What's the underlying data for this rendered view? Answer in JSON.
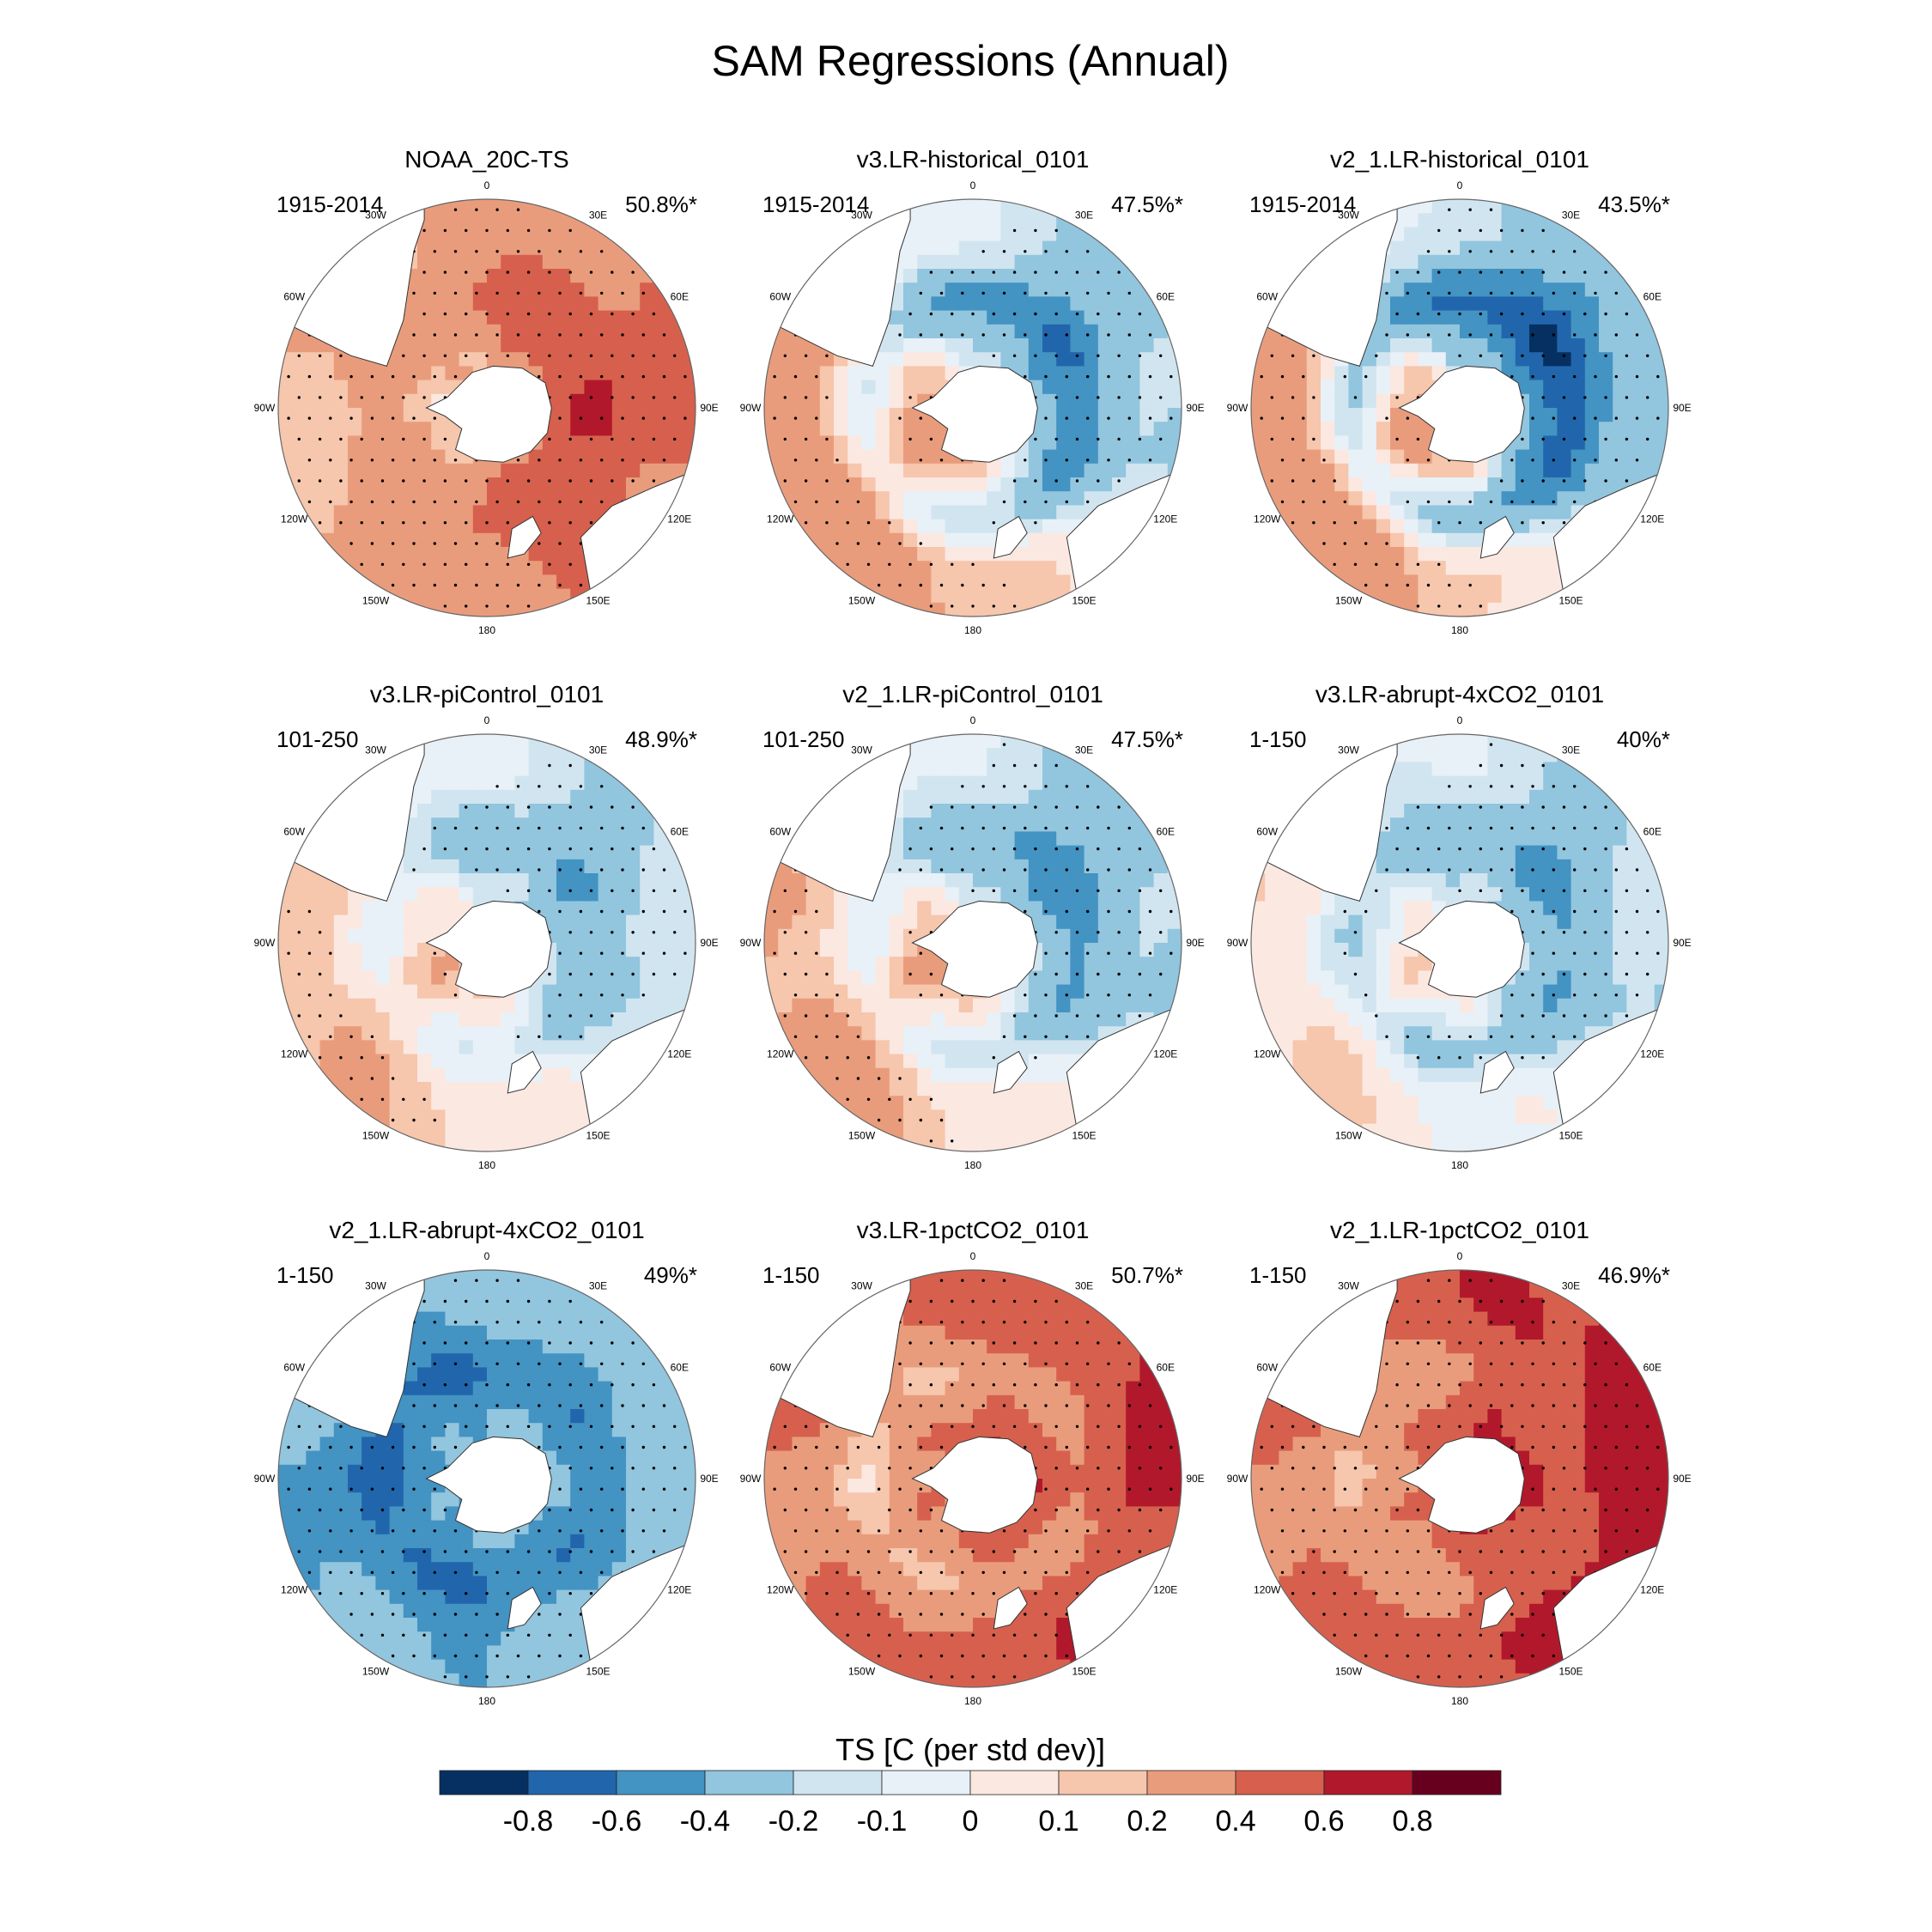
{
  "chart_data": {
    "type": "heatmap",
    "title": "SAM Regressions (Annual)",
    "projection": "south-polar-stereographic",
    "longitude_labels": [
      "0",
      "30E",
      "60E",
      "90E",
      "120E",
      "150E",
      "180",
      "150W",
      "120W",
      "90W",
      "60W",
      "30W"
    ],
    "panels": [
      {
        "title": "NOAA_20C-TS",
        "period": "1915-2014",
        "variance": "50.8%*",
        "pattern": {
          "base": 0.3,
          "ring": 0.15,
          "phase": 0,
          "mod": 0.15,
          "inner": -0.05
        }
      },
      {
        "title": "v3.LR-historical_0101",
        "period": "1915-2014",
        "variance": "47.5%*",
        "pattern": {
          "base": 0.05,
          "ring": -0.35,
          "phase": 150,
          "mod": 0.3,
          "inner": 0.0
        }
      },
      {
        "title": "v2_1.LR-historical_0101",
        "period": "1915-2014",
        "variance": "43.5%*",
        "pattern": {
          "base": 0.0,
          "ring": -0.45,
          "phase": 150,
          "mod": 0.35,
          "inner": 0.0
        }
      },
      {
        "title": "v3.LR-piControl_0101",
        "period": "101-250",
        "variance": "48.9%*",
        "pattern": {
          "base": 0.0,
          "ring": -0.2,
          "phase": 150,
          "mod": 0.2,
          "inner": 0.0
        }
      },
      {
        "title": "v2_1.LR-piControl_0101",
        "period": "101-250",
        "variance": "47.5%*",
        "pattern": {
          "base": 0.0,
          "ring": -0.25,
          "phase": 150,
          "mod": 0.25,
          "inner": 0.0
        }
      },
      {
        "title": "v3.LR-abrupt-4xCO2_0101",
        "period": "1-150",
        "variance": "40%*",
        "pattern": {
          "base": -0.05,
          "ring": -0.25,
          "phase": 150,
          "mod": 0.15,
          "inner": 0.0
        }
      },
      {
        "title": "v2_1.LR-abrupt-4xCO2_0101",
        "period": "1-150",
        "variance": "49%*",
        "pattern": {
          "base": -0.35,
          "ring": -0.25,
          "phase": 0,
          "mod": 0.05,
          "inner": 0.0
        }
      },
      {
        "title": "v3.LR-1pctCO2_0101",
        "period": "1-150",
        "variance": "50.7%*",
        "pattern": {
          "base": 0.5,
          "ring": -0.25,
          "phase": 0,
          "mod": 0.12,
          "inner": 0.0
        }
      },
      {
        "title": "v2_1.LR-1pctCO2_0101",
        "period": "1-150",
        "variance": "46.9%*",
        "pattern": {
          "base": 0.55,
          "ring": -0.2,
          "phase": 0,
          "mod": 0.15,
          "inner": 0.0
        }
      }
    ],
    "colorbar": {
      "label": "TS [C (per std dev)]",
      "tick_labels": [
        "-0.8",
        "-0.6",
        "-0.4",
        "-0.2",
        "-0.1",
        "0",
        "0.1",
        "0.2",
        "0.4",
        "0.6",
        "0.8"
      ],
      "levels": [
        -0.8,
        -0.6,
        -0.4,
        -0.2,
        -0.1,
        0,
        0.1,
        0.2,
        0.4,
        0.6,
        0.8
      ],
      "colors": [
        "#053061",
        "#2166ac",
        "#4393c3",
        "#92c5de",
        "#d1e5f0",
        "#e8f1f7",
        "#fbe8e1",
        "#f6c6ad",
        "#e99c7c",
        "#d6604d",
        "#b2182b",
        "#67001f"
      ]
    }
  }
}
